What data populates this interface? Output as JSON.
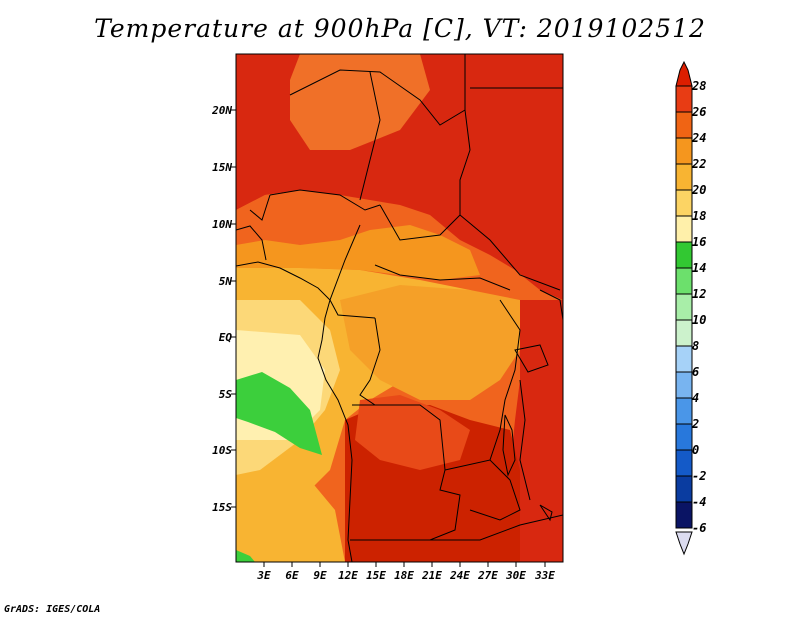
{
  "title": "Temperature at 900hPa [C], VT: 2019102512",
  "credit": "GrADS: IGES/COLA",
  "map": {
    "lat_labels": [
      "20N",
      "15N",
      "10N",
      "5N",
      "EQ",
      "5S",
      "10S",
      "15S"
    ],
    "lon_labels": [
      "3E",
      "6E",
      "9E",
      "12E",
      "15E",
      "18E",
      "21E",
      "24E",
      "27E",
      "30E",
      "33E"
    ],
    "fill_colors": {
      "t28": "#cc2200",
      "t26": "#e03c14",
      "t24": "#f0641e",
      "t22": "#f5961e",
      "t20": "#f8b432",
      "t18": "#fcd878",
      "t16": "#fff0b0",
      "t12": "#3cd03c"
    }
  },
  "colorbar": {
    "labels": [
      "28",
      "26",
      "24",
      "22",
      "20",
      "18",
      "16",
      "14",
      "12",
      "10",
      "8",
      "6",
      "4",
      "2",
      "0",
      "-2",
      "-4",
      "-6"
    ],
    "colors": [
      "#dc1e00",
      "#e83c14",
      "#f06414",
      "#f5961e",
      "#f8b432",
      "#fcd464",
      "#fff0aa",
      "#32c832",
      "#6ce06c",
      "#a8eea8",
      "#ccf2cc",
      "#a6d2f8",
      "#78b4f0",
      "#4a96e8",
      "#2878dc",
      "#145ac8",
      "#0a3ca0",
      "#0a1464",
      "#dcdcf0"
    ]
  }
}
